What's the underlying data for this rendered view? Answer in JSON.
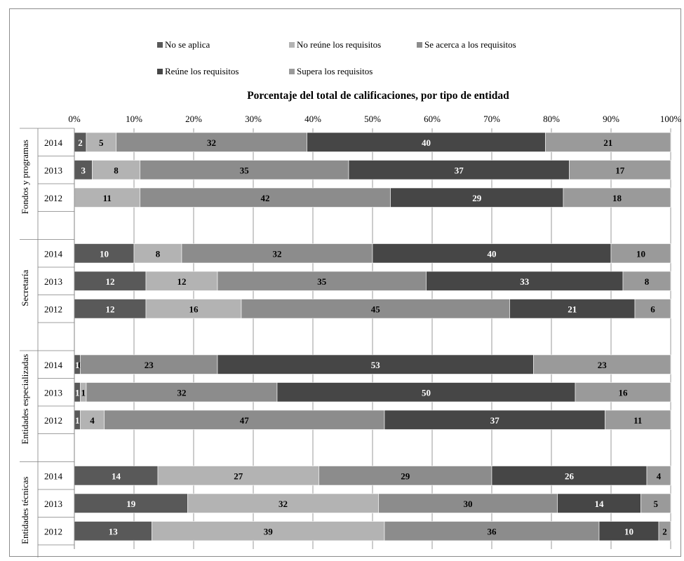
{
  "chart_data": {
    "type": "bar",
    "orientation": "horizontal",
    "stacked": true,
    "title": "Porcentaje del total de calificaciones, por tipo de entidad",
    "xlim": [
      0,
      100
    ],
    "x_ticks": [
      "0%",
      "10%",
      "20%",
      "30%",
      "40%",
      "50%",
      "60%",
      "70%",
      "80%",
      "90%",
      "100%"
    ],
    "grid": true,
    "legend_position": "top",
    "legend": [
      {
        "name": "No se aplica",
        "color": "#595959"
      },
      {
        "name": "No reúne los requisitos",
        "color": "#b3b3b3"
      },
      {
        "name": "Se acerca a los requisitos",
        "color": "#8c8c8c"
      },
      {
        "name": "Reúne los requisitos",
        "color": "#464646"
      },
      {
        "name": "Supera los requisitos",
        "color": "#9a9a9a"
      }
    ],
    "groups": [
      {
        "name": "Fondos y programas",
        "rows": [
          {
            "year": "2014",
            "values": [
              2,
              5,
              32,
              40,
              21
            ],
            "labels": [
              "2",
              "5",
              "32",
              "40",
              "21"
            ]
          },
          {
            "year": "2013",
            "values": [
              3,
              8,
              35,
              37,
              17
            ],
            "labels": [
              "3",
              "8",
              "35",
              "37",
              "17"
            ]
          },
          {
            "year": "2012",
            "values": [
              0,
              11,
              42,
              29,
              18
            ],
            "labels": [
              "0",
              "11",
              "42",
              "29",
              "18"
            ]
          }
        ]
      },
      {
        "name": "Secretaría",
        "rows": [
          {
            "year": "2014",
            "values": [
              10,
              8,
              32,
              40,
              10
            ],
            "labels": [
              "10",
              "8",
              "32",
              "40",
              "10"
            ]
          },
          {
            "year": "2013",
            "values": [
              12,
              12,
              35,
              33,
              8
            ],
            "labels": [
              "12",
              "12",
              "35",
              "33",
              "8"
            ]
          },
          {
            "year": "2012",
            "values": [
              12,
              16,
              45,
              21,
              6
            ],
            "labels": [
              "12",
              "16",
              "45",
              "21",
              "6"
            ]
          }
        ]
      },
      {
        "name": "Entidades especializadas",
        "rows": [
          {
            "year": "2014",
            "values": [
              1,
              0,
              23,
              53,
              23
            ],
            "labels": [
              "1",
              "0",
              "23",
              "53",
              "23"
            ]
          },
          {
            "year": "2013",
            "values": [
              1,
              1,
              32,
              50,
              16
            ],
            "labels": [
              "1",
              "1",
              "32",
              "50",
              "16"
            ]
          },
          {
            "year": "2012",
            "values": [
              1,
              4,
              47,
              37,
              11
            ],
            "labels": [
              "1",
              "4",
              "47",
              "37",
              "11"
            ]
          }
        ]
      },
      {
        "name": "Entidades técnicas",
        "rows": [
          {
            "year": "2014",
            "values": [
              14,
              27,
              29,
              26,
              4
            ],
            "labels": [
              "14",
              "27",
              "29",
              "26",
              "4"
            ]
          },
          {
            "year": "2013",
            "values": [
              19,
              32,
              30,
              14,
              5
            ],
            "labels": [
              "19",
              "32",
              "30",
              "14",
              "5"
            ]
          },
          {
            "year": "2012",
            "values": [
              13,
              39,
              36,
              10,
              2
            ],
            "labels": [
              "13",
              "39",
              "36",
              "10",
              "2"
            ]
          }
        ]
      }
    ]
  }
}
